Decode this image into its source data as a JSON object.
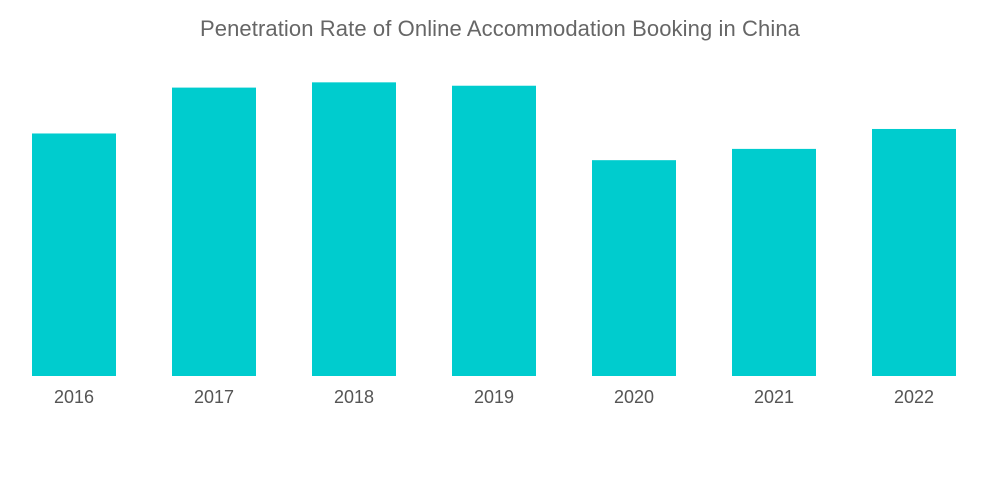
{
  "chart_data": {
    "type": "bar",
    "title": "Penetration Rate of Online Accommodation Booking in China",
    "xlabel": "",
    "ylabel": "",
    "categories": [
      "2016",
      "2017",
      "2018",
      "2019",
      "2020",
      "2021",
      "2022"
    ],
    "values": [
      64.5,
      76.7,
      78.1,
      77.2,
      57.4,
      60.4,
      65.7
    ],
    "ylim": [
      0,
      100
    ],
    "grid": false,
    "legend": "none",
    "bar_color": "#00CCCE"
  }
}
